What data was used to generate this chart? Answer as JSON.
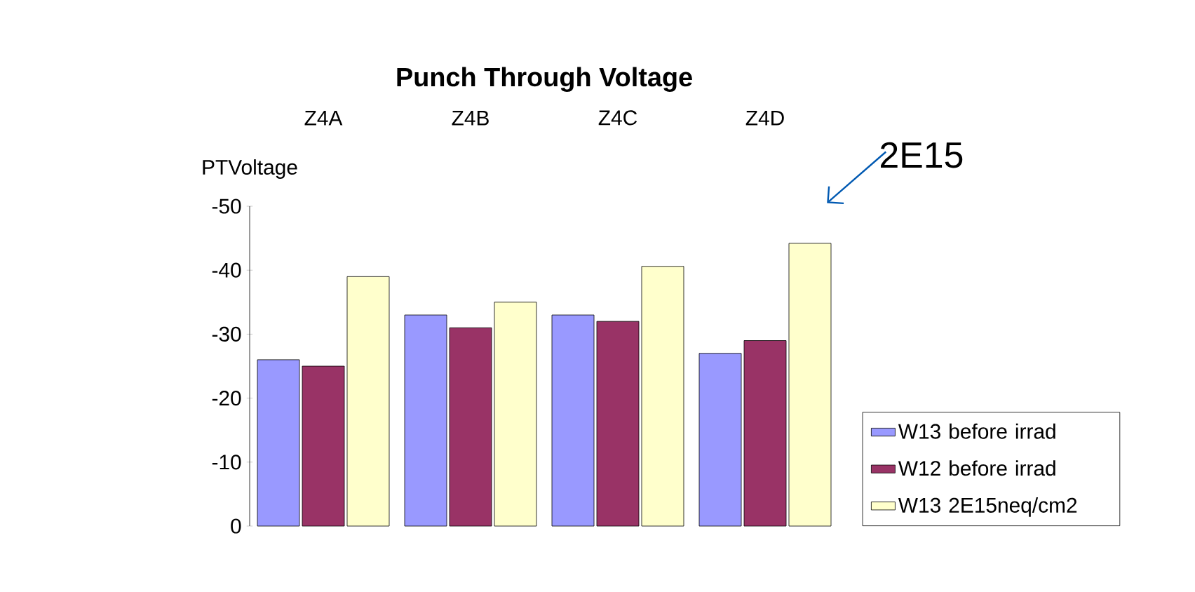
{
  "chart_data": {
    "type": "bar",
    "title": "Punch Through Voltage",
    "ylabel": "PTVoltage",
    "categories": [
      "Z4A",
      "Z4B",
      "Z4C",
      "Z4D"
    ],
    "series": [
      {
        "name": "W13 before irrad",
        "color": "#9999ff",
        "values": [
          -26,
          -33,
          -33,
          -27
        ]
      },
      {
        "name": "W12 before irrad",
        "color": "#993366",
        "values": [
          -25,
          -31,
          -32,
          -29
        ]
      },
      {
        "name": "W13 2E15neq/cm2",
        "color": "#ffffcc",
        "values": [
          -39,
          -35,
          -40.6,
          -44.2
        ]
      }
    ],
    "ylim": [
      0,
      -50
    ],
    "yticks": [
      0,
      -10,
      -20,
      -30,
      -40,
      -50
    ],
    "annotations": [
      "2E15"
    ],
    "legend": "right",
    "grid": false
  }
}
